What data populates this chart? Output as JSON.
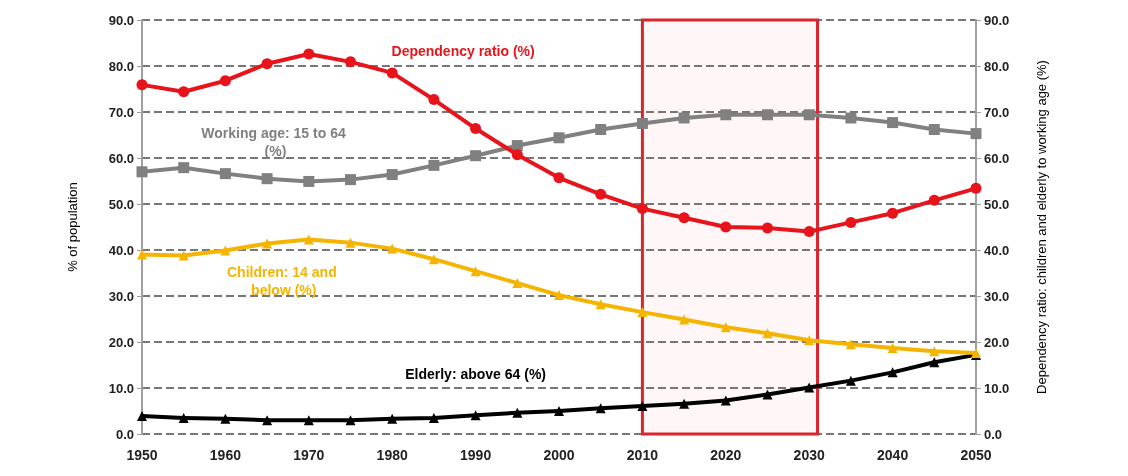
{
  "chart_data": {
    "type": "line",
    "ylabel": "% of population",
    "y2label": "Dependency ratio: children and elderly to working age (%)",
    "x": [
      1950,
      1955,
      1960,
      1965,
      1970,
      1975,
      1980,
      1985,
      1990,
      1995,
      2000,
      2005,
      2010,
      2015,
      2020,
      2025,
      2030,
      2035,
      2040,
      2045,
      2050
    ],
    "xlim": [
      1950,
      2050
    ],
    "xticks": [
      1950,
      1960,
      1970,
      1980,
      1990,
      2000,
      2010,
      2020,
      2030,
      2040,
      2050
    ],
    "ylim": [
      0,
      90
    ],
    "yticks": [
      {
        "value": 0,
        "label": "0.0"
      },
      {
        "value": 10,
        "label": "10.0"
      },
      {
        "value": 20,
        "label": "20.0"
      },
      {
        "value": 30,
        "label": "30.0"
      },
      {
        "value": 40,
        "label": "40.0"
      },
      {
        "value": 50,
        "label": "50.0"
      },
      {
        "value": 60,
        "label": "60.0"
      },
      {
        "value": 70,
        "label": "70.0"
      },
      {
        "value": 80,
        "label": "80.0"
      },
      {
        "value": 90,
        "label": "90.0"
      }
    ],
    "y2lim": [
      0,
      90
    ],
    "y2ticks": [
      {
        "value": 0,
        "label": "0.0"
      },
      {
        "value": 10,
        "label": "10.0"
      },
      {
        "value": 20,
        "label": "20.0"
      },
      {
        "value": 30,
        "label": "30.0"
      },
      {
        "value": 40,
        "label": "40.0"
      },
      {
        "value": 50,
        "label": "50.0"
      },
      {
        "value": 60,
        "label": "60.0"
      },
      {
        "value": 70,
        "label": "70.0"
      },
      {
        "value": 80,
        "label": "80.0"
      },
      {
        "value": 90,
        "label": "90.0"
      }
    ],
    "grid": "y",
    "series": [
      {
        "color": "#e8141b",
        "marker": "circle",
        "values": [
          75.9,
          74.4,
          76.8,
          80.5,
          82.6,
          80.9,
          78.5,
          72.7,
          66.4,
          60.7,
          55.7,
          52.1,
          49.0,
          47.0,
          45.0,
          44.8,
          44.0,
          46.0,
          48.0,
          50.8,
          53.4
        ]
      },
      {
        "color": "#808080",
        "marker": "square",
        "values": [
          57.0,
          57.9,
          56.6,
          55.5,
          54.9,
          55.3,
          56.4,
          58.4,
          60.5,
          62.7,
          64.4,
          66.2,
          67.5,
          68.7,
          69.4,
          69.4,
          69.4,
          68.7,
          67.7,
          66.2,
          65.3
        ]
      },
      {
        "color": "#f4b400",
        "marker": "triangle",
        "values": [
          39.0,
          38.8,
          39.9,
          41.4,
          42.3,
          41.6,
          40.3,
          38.0,
          35.4,
          32.8,
          30.2,
          28.2,
          26.5,
          24.9,
          23.2,
          21.9,
          20.4,
          19.5,
          18.7,
          18.0,
          17.6
        ]
      },
      {
        "color": "#000000",
        "marker": "triangle",
        "values": [
          3.9,
          3.5,
          3.3,
          3.0,
          3.0,
          3.0,
          3.3,
          3.5,
          4.1,
          4.6,
          5.0,
          5.6,
          6.1,
          6.6,
          7.3,
          8.6,
          10.1,
          11.6,
          13.4,
          15.6,
          17.2
        ]
      }
    ],
    "bands": [
      {
        "axis": "x",
        "from": 2010,
        "to": 2031,
        "color": "#d9262c"
      }
    ],
    "annotations": [
      "Dependency ratio (%)",
      "Working age: 15 to 64 (%)",
      "Children: 14 and below (%)",
      "Elderly: above 64 (%)"
    ]
  }
}
